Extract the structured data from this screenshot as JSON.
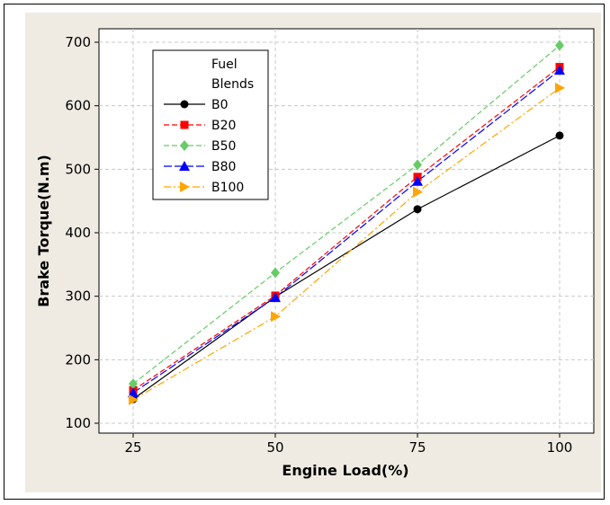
{
  "chart_data": {
    "type": "line",
    "x": [
      25,
      50,
      75,
      100
    ],
    "xlabel": "Engine Load(%)",
    "ylabel": "Brake Torque(N.m)",
    "xlim": [
      25,
      100
    ],
    "ylim": [
      100,
      700
    ],
    "xticks": [
      "25",
      "50",
      "75",
      "100"
    ],
    "yticks": [
      "100",
      "200",
      "300",
      "400",
      "500",
      "600",
      "700"
    ],
    "grid": true,
    "legend": {
      "title": [
        "Fuel",
        "Blends"
      ],
      "placement": "top-left"
    },
    "series": [
      {
        "name": "B0",
        "values": [
          138,
          299,
          437,
          553
        ],
        "color": "#000000",
        "marker": "circle",
        "dash": "solid"
      },
      {
        "name": "B20",
        "values": [
          152,
          301,
          488,
          661
        ],
        "color": "#ff0000",
        "marker": "square",
        "dash": "dash"
      },
      {
        "name": "B50",
        "values": [
          162,
          337,
          507,
          695
        ],
        "color": "#66cc66",
        "marker": "diamond",
        "dash": "dash"
      },
      {
        "name": "B80",
        "values": [
          148,
          298,
          481,
          656
        ],
        "color": "#0000ff",
        "marker": "triangle",
        "dash": "longdash"
      },
      {
        "name": "B100",
        "values": [
          137,
          268,
          464,
          628
        ],
        "color": "#ffa500",
        "marker": "triangle-right",
        "dash": "dashdot"
      }
    ]
  }
}
